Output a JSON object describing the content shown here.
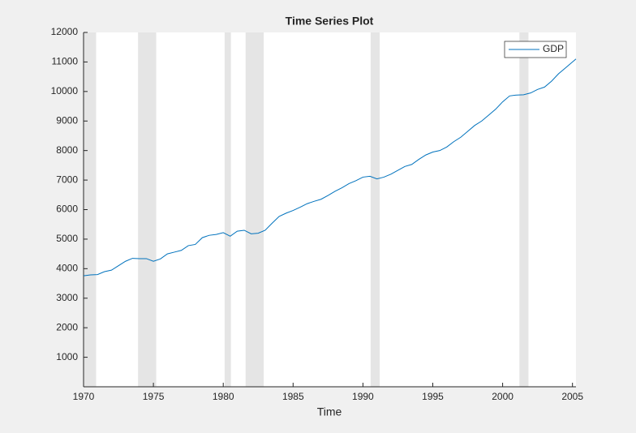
{
  "chart_data": {
    "type": "line",
    "title": "Time Series Plot",
    "x_label": "Time",
    "x": [
      1970,
      1970.5,
      1971,
      1971.5,
      1972,
      1972.5,
      1973,
      1973.5,
      1974,
      1974.5,
      1975,
      1975.5,
      1976,
      1976.5,
      1977,
      1977.5,
      1978,
      1978.5,
      1979,
      1979.5,
      1980,
      1980.5,
      1981,
      1981.5,
      1982,
      1982.5,
      1983,
      1983.5,
      1984,
      1984.5,
      1985,
      1985.5,
      1986,
      1986.5,
      1987,
      1987.5,
      1988,
      1988.5,
      1989,
      1989.5,
      1990,
      1990.5,
      1991,
      1991.5,
      1992,
      1992.5,
      1993,
      1993.5,
      1994,
      1994.5,
      1995,
      1995.5,
      1996,
      1996.5,
      1997,
      1997.5,
      1998,
      1998.5,
      1999,
      1999.5,
      2000,
      2000.5,
      2001,
      2001.5,
      2002,
      2002.5,
      2003,
      2003.5,
      2004,
      2004.5,
      2005,
      2005.25
    ],
    "series": [
      {
        "name": "GDP",
        "color": "#0072bd",
        "values": [
          3760,
          3790,
          3800,
          3900,
          3950,
          4100,
          4250,
          4350,
          4340,
          4340,
          4250,
          4330,
          4500,
          4560,
          4620,
          4780,
          4820,
          5050,
          5130,
          5160,
          5220,
          5100,
          5270,
          5300,
          5180,
          5200,
          5300,
          5540,
          5770,
          5880,
          5970,
          6080,
          6200,
          6280,
          6350,
          6480,
          6620,
          6740,
          6880,
          6980,
          7100,
          7130,
          7040,
          7100,
          7200,
          7330,
          7460,
          7530,
          7700,
          7850,
          7950,
          8000,
          8120,
          8300,
          8450,
          8650,
          8850,
          9000,
          9200,
          9400,
          9650,
          9850,
          9880,
          9890,
          9950,
          10070,
          10150,
          10350,
          10600,
          10800,
          11000,
          11100
        ]
      }
    ],
    "recessions": [
      [
        1970.0,
        1970.9
      ],
      [
        1973.9,
        1975.2
      ],
      [
        1980.1,
        1980.55
      ],
      [
        1981.6,
        1982.9
      ],
      [
        1990.55,
        1991.2
      ],
      [
        2001.2,
        2001.85
      ]
    ],
    "recession_color": "#e5e5e5",
    "xlim": [
      1970,
      2005.25
    ],
    "xticks": [
      1970,
      1975,
      1980,
      1985,
      1990,
      1995,
      2000,
      2005
    ],
    "ylim": [
      0,
      12000
    ],
    "yticks": [
      1000,
      2000,
      3000,
      4000,
      5000,
      6000,
      7000,
      8000,
      9000,
      10000,
      11000,
      12000
    ],
    "legend": "northeast"
  }
}
